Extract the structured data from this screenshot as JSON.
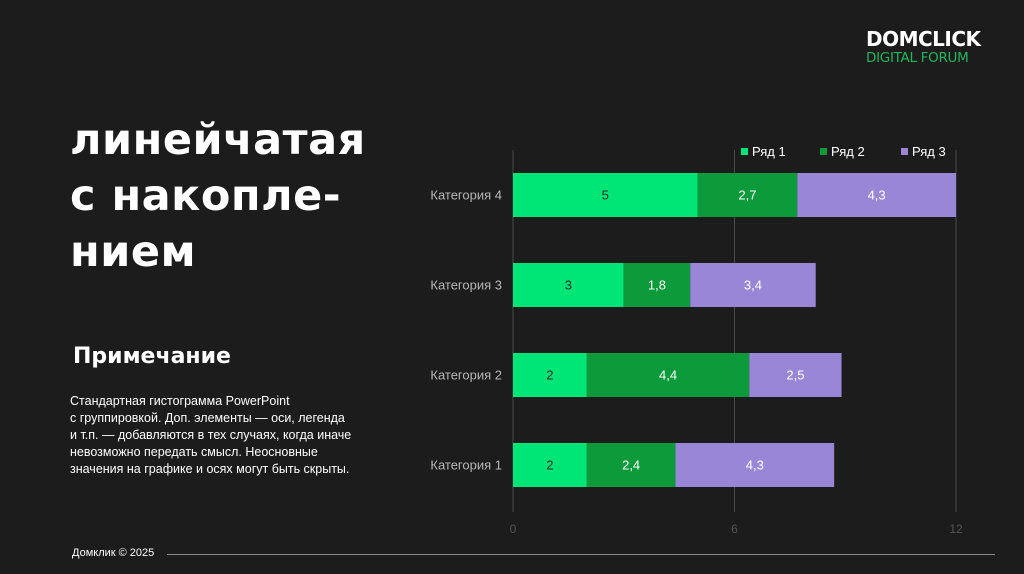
{
  "logo": {
    "top": "DOMCLICK",
    "bottom": "DIGITAL FORUM"
  },
  "title": "линейчатая\nс накопле-\nнием",
  "note": {
    "heading": "Примечание",
    "text": "Стандартная гистограмма PowerPoint\nс группировкой. Доп. элементы — оси, легенда\nи т.п. — добавляются в тех случаях, когда иначе\nневозможно передать смысл. Неосновные\nзначения на графике и осях могут быть скрыты."
  },
  "footer": {
    "text": "Домклик © 2025"
  },
  "chart_data": {
    "type": "bar",
    "orientation": "horizontal",
    "stacked": true,
    "categories": [
      "Категория 1",
      "Категория 2",
      "Категория 3",
      "Категория 4"
    ],
    "series": [
      {
        "name": "Ряд 1",
        "values": [
          2,
          2,
          3,
          5
        ],
        "labels": [
          "2",
          "2",
          "3",
          "5"
        ],
        "color": "#00e676"
      },
      {
        "name": "Ряд 2",
        "values": [
          2.4,
          4.4,
          1.8,
          2.7
        ],
        "labels": [
          "2,4",
          "4,4",
          "1,8",
          "2,7"
        ],
        "color": "#0c9a3a"
      },
      {
        "name": "Ряд 3",
        "values": [
          4.3,
          2.5,
          3.4,
          4.3
        ],
        "labels": [
          "4,3",
          "2,5",
          "3,4",
          "4,3"
        ],
        "color": "#9a86d6"
      }
    ],
    "xlim": [
      0,
      12
    ],
    "xticks": [
      "0",
      "6",
      "12"
    ],
    "xtick_values": [
      0,
      6,
      12
    ],
    "grid": true,
    "legend_position": "top-right"
  }
}
